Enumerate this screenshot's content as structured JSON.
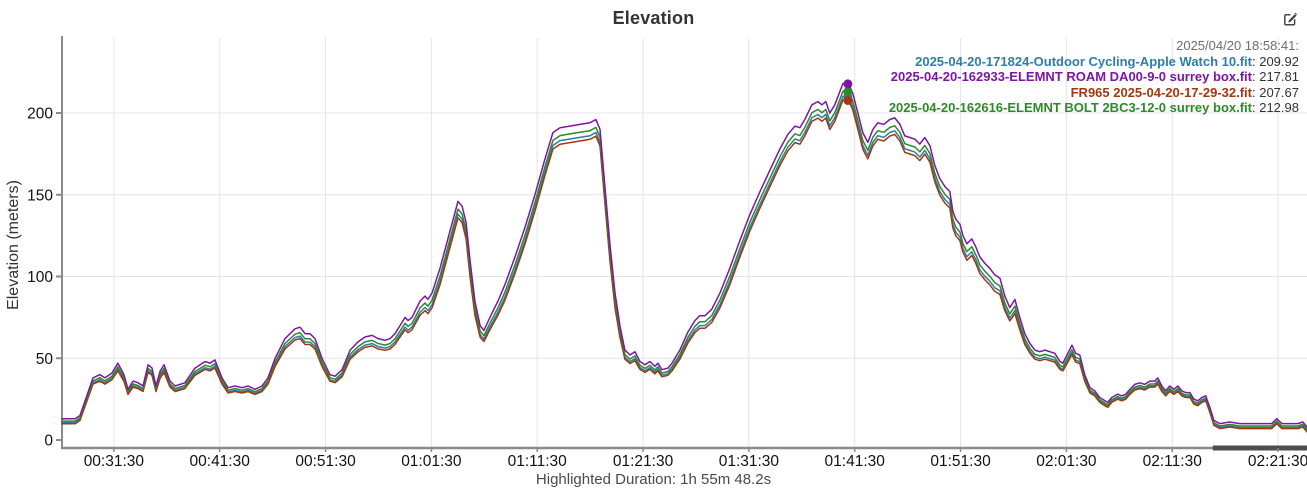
{
  "header": {
    "title": "Elevation"
  },
  "footer": {
    "highlighted_duration": "Highlighted Duration: 1h 55m 48.2s"
  },
  "colors": {
    "grid": "#e4e4e4",
    "axis": "#8a8a8a",
    "axis_overlay_bar": "#4d4d4d",
    "tick_text": "#111111",
    "title_text": "#333333",
    "legend_header_text": "#6e6e6e",
    "legend_value_text": "#333333",
    "footer_text": "#4a4a4a"
  },
  "chart_data": {
    "type": "line",
    "title": "Elevation",
    "xlabel": "",
    "ylabel": "Elevation (meters)",
    "grid": true,
    "legend_position": "top-right",
    "legend_header": "2025/04/20 18:58:41:",
    "legend_separator": ": ",
    "x_range_seconds": [
      1596,
      8654
    ],
    "ylim": [
      0,
      245
    ],
    "y_ticks": [
      0,
      50,
      100,
      150,
      200
    ],
    "x_ticks": [
      {
        "label": "00:31:30",
        "seconds": 1890
      },
      {
        "label": "00:41:30",
        "seconds": 2490
      },
      {
        "label": "00:51:30",
        "seconds": 3090
      },
      {
        "label": "01:01:30",
        "seconds": 3690
      },
      {
        "label": "01:11:30",
        "seconds": 4290
      },
      {
        "label": "01:21:30",
        "seconds": 4890
      },
      {
        "label": "01:31:30",
        "seconds": 5490
      },
      {
        "label": "01:41:30",
        "seconds": 6090
      },
      {
        "label": "01:51:30",
        "seconds": 6690
      },
      {
        "label": "02:01:30",
        "seconds": 7290
      },
      {
        "label": "02:11:30",
        "seconds": 7890
      },
      {
        "label": "02:21:30",
        "seconds": 8490
      }
    ],
    "x_axis_overlay_bar_from_seconds": 8120,
    "cursor_time_seconds": 6051,
    "series": [
      {
        "name": "2025-04-20-171824-Outdoor Cycling-Apple Watch 10.fit",
        "color": "#2d7ea6",
        "cursor_value": "209.92",
        "offset_m": -7.9,
        "z": 1
      },
      {
        "name": "2025-04-20-162933-ELEMNT ROAM DA00-9-0 surrey box.fit",
        "color": "#7d15a5",
        "cursor_value": "217.81",
        "offset_m": 0,
        "z": 4
      },
      {
        "name": "FR965 2025-04-20-17-29-32.fit",
        "color": "#a5380f",
        "cursor_value": "207.67",
        "offset_m": -10.1,
        "z": 2
      },
      {
        "name": "2025-04-20-162616-ELEMNT BOLT 2BC3-12-0 surrey box.fit",
        "color": "#2c8a28",
        "cursor_value": "212.98",
        "offset_m": -4.8,
        "z": 3
      }
    ],
    "base_profile_points_time_s_elev_m": [
      [
        1596,
        13
      ],
      [
        1670,
        13
      ],
      [
        1698,
        15
      ],
      [
        1772,
        38
      ],
      [
        1811,
        40
      ],
      [
        1840,
        38
      ],
      [
        1879,
        41
      ],
      [
        1913,
        47
      ],
      [
        1947,
        40
      ],
      [
        1970,
        31
      ],
      [
        1999,
        36
      ],
      [
        2027,
        35
      ],
      [
        2055,
        33
      ],
      [
        2084,
        46
      ],
      [
        2106,
        44
      ],
      [
        2129,
        33
      ],
      [
        2152,
        42
      ],
      [
        2174,
        46
      ],
      [
        2208,
        36
      ],
      [
        2237,
        33
      ],
      [
        2293,
        35
      ],
      [
        2350,
        44
      ],
      [
        2407,
        48
      ],
      [
        2435,
        47
      ],
      [
        2463,
        49
      ],
      [
        2503,
        38
      ],
      [
        2537,
        32
      ],
      [
        2577,
        33
      ],
      [
        2617,
        32
      ],
      [
        2651,
        33
      ],
      [
        2690,
        31
      ],
      [
        2730,
        33
      ],
      [
        2764,
        38
      ],
      [
        2804,
        50
      ],
      [
        2860,
        62
      ],
      [
        2917,
        68
      ],
      [
        2945,
        69
      ],
      [
        2974,
        65
      ],
      [
        3002,
        65
      ],
      [
        3030,
        62
      ],
      [
        3070,
        50
      ],
      [
        3115,
        40
      ],
      [
        3144,
        39
      ],
      [
        3184,
        43
      ],
      [
        3229,
        55
      ],
      [
        3274,
        60
      ],
      [
        3314,
        63
      ],
      [
        3354,
        64
      ],
      [
        3388,
        62
      ],
      [
        3427,
        61
      ],
      [
        3456,
        62
      ],
      [
        3484,
        65
      ],
      [
        3512,
        70
      ],
      [
        3541,
        75
      ],
      [
        3558,
        73
      ],
      [
        3580,
        75
      ],
      [
        3626,
        85
      ],
      [
        3654,
        88
      ],
      [
        3671,
        86
      ],
      [
        3694,
        90
      ],
      [
        3739,
        105
      ],
      [
        3796,
        128
      ],
      [
        3841,
        146
      ],
      [
        3864,
        143
      ],
      [
        3887,
        133
      ],
      [
        3909,
        110
      ],
      [
        3937,
        85
      ],
      [
        3966,
        70
      ],
      [
        3988,
        67
      ],
      [
        4022,
        75
      ],
      [
        4068,
        85
      ],
      [
        4107,
        95
      ],
      [
        4164,
        112
      ],
      [
        4221,
        130
      ],
      [
        4277,
        150
      ],
      [
        4334,
        172
      ],
      [
        4379,
        188
      ],
      [
        4419,
        191
      ],
      [
        4476,
        192
      ],
      [
        4532,
        193
      ],
      [
        4589,
        194
      ],
      [
        4623,
        196
      ],
      [
        4646,
        190
      ],
      [
        4674,
        155
      ],
      [
        4702,
        120
      ],
      [
        4731,
        90
      ],
      [
        4759,
        70
      ],
      [
        4787,
        55
      ],
      [
        4816,
        52
      ],
      [
        4844,
        54
      ],
      [
        4872,
        48
      ],
      [
        4901,
        46
      ],
      [
        4929,
        48
      ],
      [
        4957,
        45
      ],
      [
        4974,
        47
      ],
      [
        4997,
        43
      ],
      [
        5031,
        44
      ],
      [
        5054,
        47
      ],
      [
        5076,
        51
      ],
      [
        5099,
        55
      ],
      [
        5144,
        66
      ],
      [
        5184,
        73
      ],
      [
        5212,
        76
      ],
      [
        5241,
        76
      ],
      [
        5280,
        80
      ],
      [
        5326,
        90
      ],
      [
        5382,
        105
      ],
      [
        5439,
        122
      ],
      [
        5496,
        138
      ],
      [
        5553,
        152
      ],
      [
        5609,
        165
      ],
      [
        5666,
        178
      ],
      [
        5711,
        187
      ],
      [
        5751,
        192
      ],
      [
        5779,
        191
      ],
      [
        5807,
        196
      ],
      [
        5847,
        205
      ],
      [
        5881,
        207
      ],
      [
        5904,
        205
      ],
      [
        5926,
        207
      ],
      [
        5949,
        200
      ],
      [
        5977,
        205
      ],
      [
        6023,
        218
      ],
      [
        6051,
        219
      ],
      [
        6079,
        212
      ],
      [
        6108,
        200
      ],
      [
        6136,
        188
      ],
      [
        6164,
        182
      ],
      [
        6193,
        190
      ],
      [
        6221,
        194
      ],
      [
        6255,
        193
      ],
      [
        6289,
        196
      ],
      [
        6317,
        197
      ],
      [
        6346,
        193
      ],
      [
        6374,
        186
      ],
      [
        6402,
        185
      ],
      [
        6431,
        184
      ],
      [
        6459,
        181
      ],
      [
        6487,
        185
      ],
      [
        6516,
        180
      ],
      [
        6544,
        168
      ],
      [
        6572,
        160
      ],
      [
        6601,
        155
      ],
      [
        6629,
        152
      ],
      [
        6646,
        140
      ],
      [
        6663,
        135
      ],
      [
        6686,
        132
      ],
      [
        6703,
        125
      ],
      [
        6726,
        120
      ],
      [
        6754,
        123
      ],
      [
        6777,
        118
      ],
      [
        6799,
        112
      ],
      [
        6828,
        108
      ],
      [
        6856,
        105
      ],
      [
        6884,
        101
      ],
      [
        6913,
        99
      ],
      [
        6941,
        88
      ],
      [
        6969,
        81
      ],
      [
        6998,
        86
      ],
      [
        7026,
        75
      ],
      [
        7054,
        65
      ],
      [
        7083,
        59
      ],
      [
        7111,
        55
      ],
      [
        7139,
        54
      ],
      [
        7168,
        55
      ],
      [
        7196,
        54
      ],
      [
        7224,
        53
      ],
      [
        7253,
        48
      ],
      [
        7270,
        47
      ],
      [
        7298,
        53
      ],
      [
        7321,
        58
      ],
      [
        7343,
        53
      ],
      [
        7366,
        52
      ],
      [
        7394,
        40
      ],
      [
        7423,
        32
      ],
      [
        7451,
        30
      ],
      [
        7479,
        26
      ],
      [
        7508,
        24
      ],
      [
        7525,
        23
      ],
      [
        7547,
        26
      ],
      [
        7581,
        28
      ],
      [
        7604,
        27
      ],
      [
        7627,
        28
      ],
      [
        7650,
        31
      ],
      [
        7678,
        34
      ],
      [
        7706,
        35
      ],
      [
        7734,
        34
      ],
      [
        7763,
        36
      ],
      [
        7791,
        36
      ],
      [
        7808,
        38
      ],
      [
        7831,
        33
      ],
      [
        7853,
        30
      ],
      [
        7876,
        33
      ],
      [
        7899,
        31
      ],
      [
        7922,
        33
      ],
      [
        7944,
        30
      ],
      [
        7967,
        29
      ],
      [
        7990,
        29
      ],
      [
        8012,
        25
      ],
      [
        8035,
        24
      ],
      [
        8058,
        26
      ],
      [
        8080,
        27
      ],
      [
        8103,
        20
      ],
      [
        8126,
        12
      ],
      [
        8160,
        10
      ],
      [
        8216,
        11
      ],
      [
        8273,
        10
      ],
      [
        8330,
        10
      ],
      [
        8375,
        10
      ],
      [
        8420,
        10
      ],
      [
        8454,
        10
      ],
      [
        8483,
        13
      ],
      [
        8511,
        10
      ],
      [
        8556,
        10
      ],
      [
        8602,
        10
      ],
      [
        8630,
        11
      ],
      [
        8654,
        8
      ]
    ]
  }
}
